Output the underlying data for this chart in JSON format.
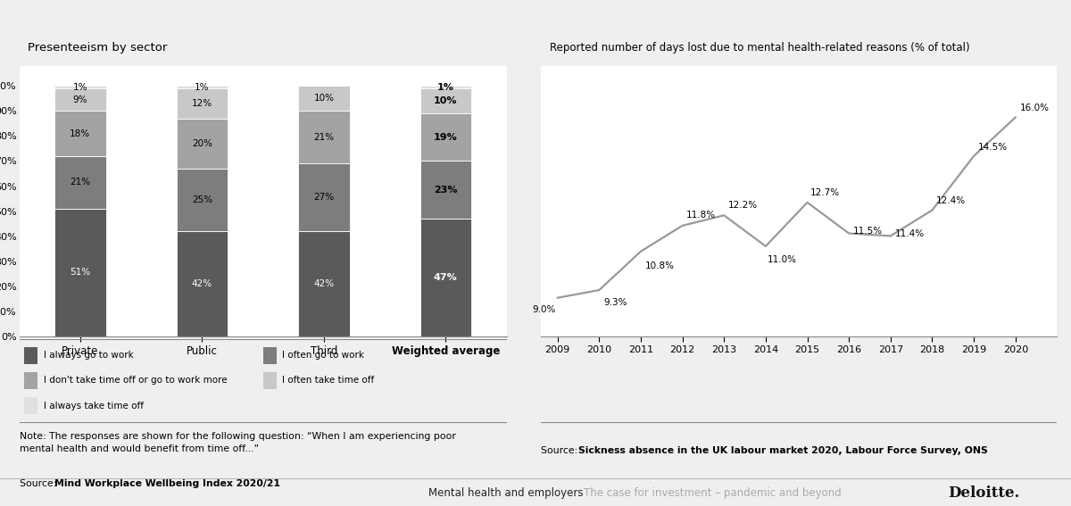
{
  "bar_title": "Presenteeism by sector",
  "bar_categories": [
    "Private",
    "Public",
    "Third",
    "Weighted average"
  ],
  "bar_segments": {
    "I always go to work": [
      51,
      42,
      42,
      47
    ],
    "I often go to work": [
      21,
      25,
      27,
      23
    ],
    "I don't take time off or go to work more": [
      18,
      20,
      21,
      19
    ],
    "I often take time off": [
      9,
      12,
      10,
      10
    ],
    "I always take time off": [
      1,
      1,
      0,
      1
    ]
  },
  "bar_colors": [
    "#5a5a5a",
    "#7d7d7d",
    "#a3a3a3",
    "#c8c8c8",
    "#e0e0e0"
  ],
  "line_title": "Reported number of days lost due to mental health-related reasons (% of total)",
  "line_years": [
    2009,
    2010,
    2011,
    2012,
    2013,
    2014,
    2015,
    2016,
    2017,
    2018,
    2019,
    2020
  ],
  "line_values": [
    9.0,
    9.3,
    10.8,
    11.8,
    12.2,
    11.0,
    12.7,
    11.5,
    11.4,
    12.4,
    14.5,
    16.0
  ],
  "line_color": "#999999",
  "footer_left": "Mental health and employers",
  "footer_mid": "The case for investment – pandemic and beyond",
  "footer_right": "Deloitte.",
  "bg_color": "#efefef",
  "panel_bg": "#ffffff",
  "title_bg": "#d4d4d4",
  "note_italic": "\"When I am experiencing poor mental health and would benefit from time off...\"",
  "line_source_bold": "Sickness absence in the UK labour market 2020, Labour Force Survey, ONS"
}
